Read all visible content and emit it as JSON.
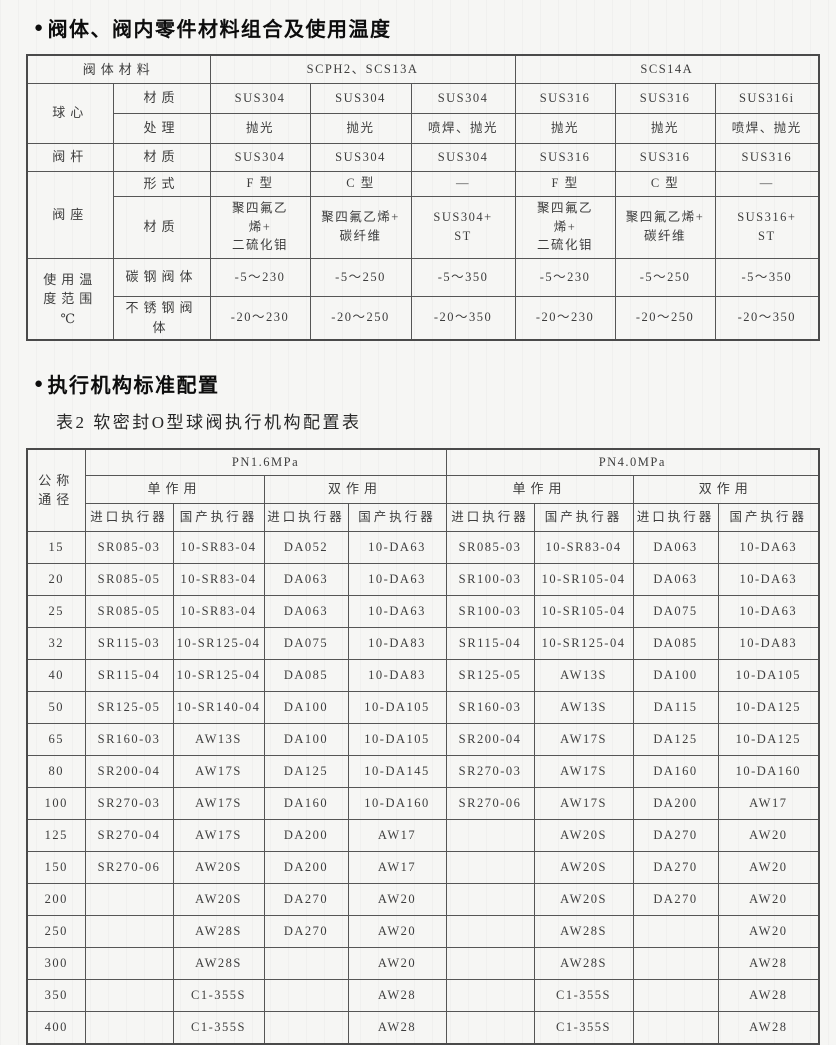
{
  "colors": {
    "background": "#f6f6f4",
    "border": "#4a4a4a",
    "text": "#3a3a3a",
    "title": "#0d0d0d"
  },
  "sections": [
    {
      "bullet": "●",
      "title": "阀体、阀内零件材料组合及使用温度"
    },
    {
      "bullet": "●",
      "title": "执行机构标准配置"
    }
  ],
  "table1": {
    "corner": "阀体材料",
    "group1": "SCPH2、SCS13A",
    "group2": "SCS14A",
    "ball_label": "球心",
    "material_label": "材质",
    "treatment_label": "处理",
    "stem_label": "阀杆",
    "seat_label": "阀座",
    "type_label": "形式",
    "temp_label": "使用温\n度范围\n℃",
    "carbon_label": "碳钢阀体",
    "stainless_label": "不锈钢阀\n体",
    "ball_material": [
      "SUS304",
      "SUS304",
      "SUS304",
      "SUS316",
      "SUS316",
      "SUS316i"
    ],
    "ball_treatment": [
      "抛光",
      "抛光",
      "喷焊、抛光",
      "抛光",
      "抛光",
      "喷焊、抛光"
    ],
    "stem_material": [
      "SUS304",
      "SUS304",
      "SUS304",
      "SUS316",
      "SUS316",
      "SUS316"
    ],
    "seat_type": [
      "F 型",
      "C 型",
      "—",
      "F 型",
      "C 型",
      "—"
    ],
    "seat_material": [
      "聚四氟乙\n烯+\n二硫化钼",
      "聚四氟乙烯+\n碳纤维",
      "SUS304+\nST",
      "聚四氟乙\n烯+\n二硫化钼",
      "聚四氟乙烯+\n碳纤维",
      "SUS316+\nST"
    ],
    "carbon_temp": [
      "-5～230",
      "-5～250",
      "-5～350",
      "-5～230",
      "-5～250",
      "-5～350"
    ],
    "stainless_temp": [
      "-20～230",
      "-20～250",
      "-20～350",
      "-20～230",
      "-20～250",
      "-20～350"
    ]
  },
  "table2": {
    "caption": "表2  软密封O型球阀执行机构配置表",
    "dn_header": "公称\n通径",
    "pn_groups": [
      "PN1.6MPa",
      "PN4.0MPa"
    ],
    "action_headers": [
      "单作用",
      "双作用",
      "单作用",
      "双作用"
    ],
    "actuator_headers": [
      "进口执行器",
      "国产执行器",
      "进口执行器",
      "国产执行器",
      "进口执行器",
      "国产执行器",
      "进口执行器",
      "国产执行器"
    ],
    "rows": [
      [
        "15",
        "SR085-03",
        "10-SR83-04",
        "DA052",
        "10-DA63",
        "SR085-03",
        "10-SR83-04",
        "DA063",
        "10-DA63"
      ],
      [
        "20",
        "SR085-05",
        "10-SR83-04",
        "DA063",
        "10-DA63",
        "SR100-03",
        "10-SR105-04",
        "DA063",
        "10-DA63"
      ],
      [
        "25",
        "SR085-05",
        "10-SR83-04",
        "DA063",
        "10-DA63",
        "SR100-03",
        "10-SR105-04",
        "DA075",
        "10-DA63"
      ],
      [
        "32",
        "SR115-03",
        "10-SR125-04",
        "DA075",
        "10-DA83",
        "SR115-04",
        "10-SR125-04",
        "DA085",
        "10-DA83"
      ],
      [
        "40",
        "SR115-04",
        "10-SR125-04",
        "DA085",
        "10-DA83",
        "SR125-05",
        "AW13S",
        "DA100",
        "10-DA105"
      ],
      [
        "50",
        "SR125-05",
        "10-SR140-04",
        "DA100",
        "10-DA105",
        "SR160-03",
        "AW13S",
        "DA115",
        "10-DA125"
      ],
      [
        "65",
        "SR160-03",
        "AW13S",
        "DA100",
        "10-DA105",
        "SR200-04",
        "AW17S",
        "DA125",
        "10-DA125"
      ],
      [
        "80",
        "SR200-04",
        "AW17S",
        "DA125",
        "10-DA145",
        "SR270-03",
        "AW17S",
        "DA160",
        "10-DA160"
      ],
      [
        "100",
        "SR270-03",
        "AW17S",
        "DA160",
        "10-DA160",
        "SR270-06",
        "AW17S",
        "DA200",
        "AW17"
      ],
      [
        "125",
        "SR270-04",
        "AW17S",
        "DA200",
        "AW17",
        "",
        "AW20S",
        "DA270",
        "AW20"
      ],
      [
        "150",
        "SR270-06",
        "AW20S",
        "DA200",
        "AW17",
        "",
        "AW20S",
        "DA270",
        "AW20"
      ],
      [
        "200",
        "",
        "AW20S",
        "DA270",
        "AW20",
        "",
        "AW20S",
        "DA270",
        "AW20"
      ],
      [
        "250",
        "",
        "AW28S",
        "DA270",
        "AW20",
        "",
        "AW28S",
        "",
        "AW20"
      ],
      [
        "300",
        "",
        "AW28S",
        "",
        "AW20",
        "",
        "AW28S",
        "",
        "AW28"
      ],
      [
        "350",
        "",
        "C1-355S",
        "",
        "AW28",
        "",
        "C1-355S",
        "",
        "AW28"
      ],
      [
        "400",
        "",
        "C1-355S",
        "",
        "AW28",
        "",
        "C1-355S",
        "",
        "AW28"
      ]
    ]
  }
}
